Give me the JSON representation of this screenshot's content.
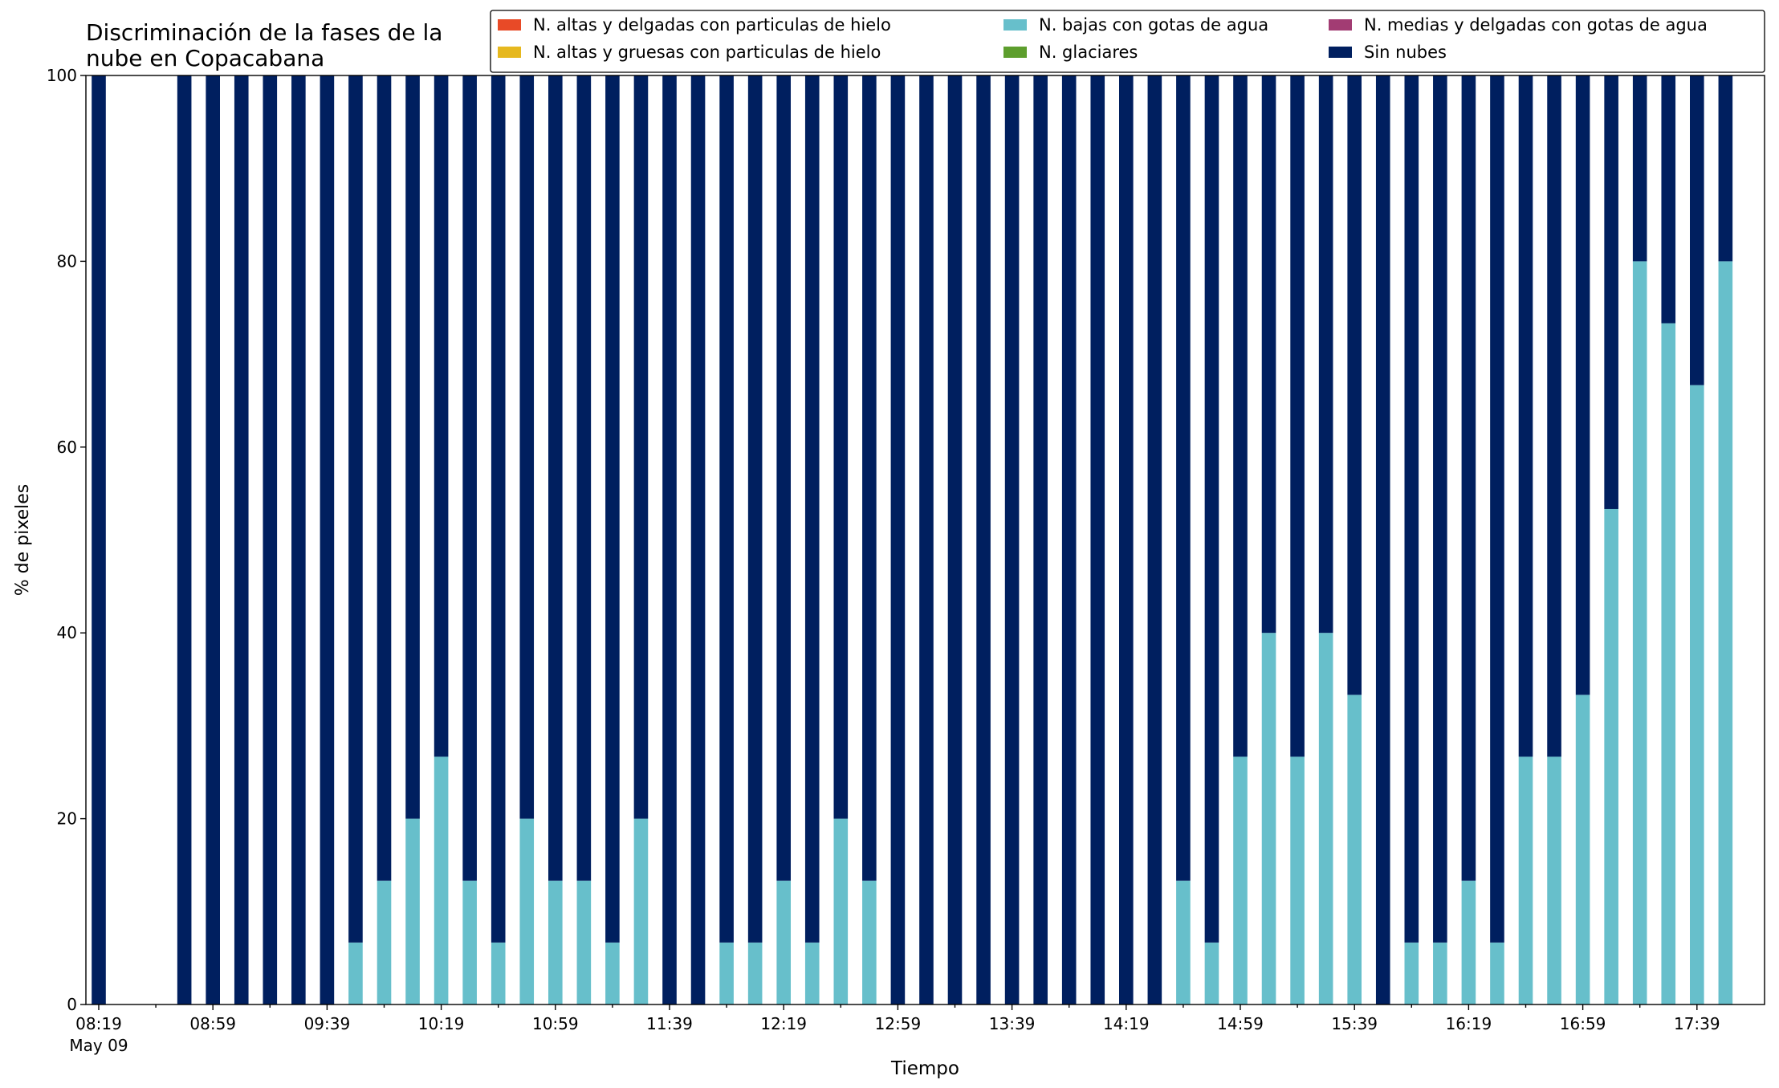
{
  "chart_data": {
    "type": "bar",
    "stacked": true,
    "title_lines": [
      "Discriminación de la fases de la",
      "nube en Copacabana"
    ],
    "xlabel": "Tiempo",
    "ylabel": "% de pixeles",
    "ylim": [
      0,
      100
    ],
    "yticks": [
      0,
      20,
      40,
      60,
      80,
      100
    ],
    "grid": false,
    "legend_position": "top-right",
    "legend_columns": 3,
    "x_time_start": "08:19",
    "x_interval_minutes": 10,
    "x_first_date_label": "May 09",
    "xtick_labels": [
      "08:19",
      "08:59",
      "09:39",
      "10:19",
      "10:59",
      "11:39",
      "12:19",
      "12:59",
      "13:39",
      "14:19",
      "14:59",
      "15:39",
      "16:19",
      "16:59",
      "17:39"
    ],
    "series": [
      {
        "name": "N. altas y delgadas con particulas de hielo",
        "color": "#e84a27",
        "values": [
          0,
          null,
          null,
          0,
          0,
          0,
          0,
          0,
          0,
          0,
          0,
          0,
          0,
          0,
          0,
          0,
          0,
          0,
          0,
          0,
          0,
          0,
          0,
          0,
          0,
          0,
          0,
          0,
          0,
          0,
          0,
          0,
          0,
          0,
          0,
          0,
          0,
          0,
          0,
          0,
          0,
          0,
          0,
          0,
          0,
          0,
          0,
          0,
          0,
          0,
          0,
          0,
          0,
          0,
          0,
          0,
          0,
          0
        ]
      },
      {
        "name": "N. altas y gruesas con particulas de hielo",
        "color": "#e6b81e",
        "values": [
          0,
          null,
          null,
          0,
          0,
          0,
          0,
          0,
          0,
          0,
          0,
          0,
          0,
          0,
          0,
          0,
          0,
          0,
          0,
          0,
          0,
          0,
          0,
          0,
          0,
          0,
          0,
          0,
          0,
          0,
          0,
          0,
          0,
          0,
          0,
          0,
          0,
          0,
          0,
          0,
          0,
          0,
          0,
          0,
          0,
          0,
          0,
          0,
          0,
          0,
          0,
          0,
          0,
          0,
          0,
          0,
          0,
          0
        ]
      },
      {
        "name": "N. bajas con gotas de agua",
        "color": "#67bfcb",
        "values": [
          0,
          null,
          null,
          0,
          0,
          0,
          0,
          0,
          0,
          6.67,
          13.33,
          20,
          26.67,
          13.33,
          6.67,
          20,
          13.33,
          13.33,
          6.67,
          20,
          0,
          0,
          6.67,
          6.67,
          13.33,
          6.67,
          20,
          13.33,
          0,
          0,
          0,
          0,
          0,
          0,
          0,
          0,
          0,
          0,
          13.33,
          6.67,
          26.67,
          40,
          26.67,
          40,
          33.33,
          0,
          6.67,
          6.67,
          13.33,
          6.67,
          26.67,
          26.67,
          33.33,
          53.33,
          80,
          73.33,
          66.67,
          80
        ]
      },
      {
        "name": "N. glaciares",
        "color": "#5d9e2d",
        "values": [
          0,
          null,
          null,
          0,
          0,
          0,
          0,
          0,
          0,
          0,
          0,
          0,
          0,
          0,
          0,
          0,
          0,
          0,
          0,
          0,
          0,
          0,
          0,
          0,
          0,
          0,
          0,
          0,
          0,
          0,
          0,
          0,
          0,
          0,
          0,
          0,
          0,
          0,
          0,
          0,
          0,
          0,
          0,
          0,
          0,
          0,
          0,
          0,
          0,
          0,
          0,
          0,
          0,
          0,
          0,
          0,
          0,
          0
        ]
      },
      {
        "name": "N. medias y delgadas con gotas de agua",
        "color": "#a23c73",
        "values": [
          0,
          null,
          null,
          0,
          0,
          0,
          0,
          0,
          0,
          0,
          0,
          0,
          0,
          0,
          0,
          0,
          0,
          0,
          0,
          0,
          0,
          0,
          0,
          0,
          0,
          0,
          0,
          0,
          0,
          0,
          0,
          0,
          0,
          0,
          0,
          0,
          0,
          0,
          0,
          0,
          0,
          0,
          0,
          0,
          0,
          0,
          0,
          0,
          0,
          0,
          0,
          0,
          0,
          0,
          0,
          0,
          0,
          0
        ]
      },
      {
        "name": "Sin nubes",
        "color": "#001f5f",
        "values": [
          100,
          null,
          null,
          100,
          100,
          100,
          100,
          100,
          100,
          93.33,
          86.67,
          80,
          73.33,
          86.67,
          93.33,
          80,
          86.67,
          86.67,
          93.33,
          80,
          100,
          100,
          93.33,
          93.33,
          86.67,
          93.33,
          80,
          86.67,
          100,
          100,
          100,
          100,
          100,
          100,
          100,
          100,
          100,
          100,
          86.67,
          93.33,
          73.33,
          60,
          73.33,
          60,
          66.67,
          100,
          93.33,
          93.33,
          86.67,
          93.33,
          73.33,
          73.33,
          66.67,
          46.67,
          20,
          26.67,
          33.33,
          20
        ]
      }
    ]
  }
}
